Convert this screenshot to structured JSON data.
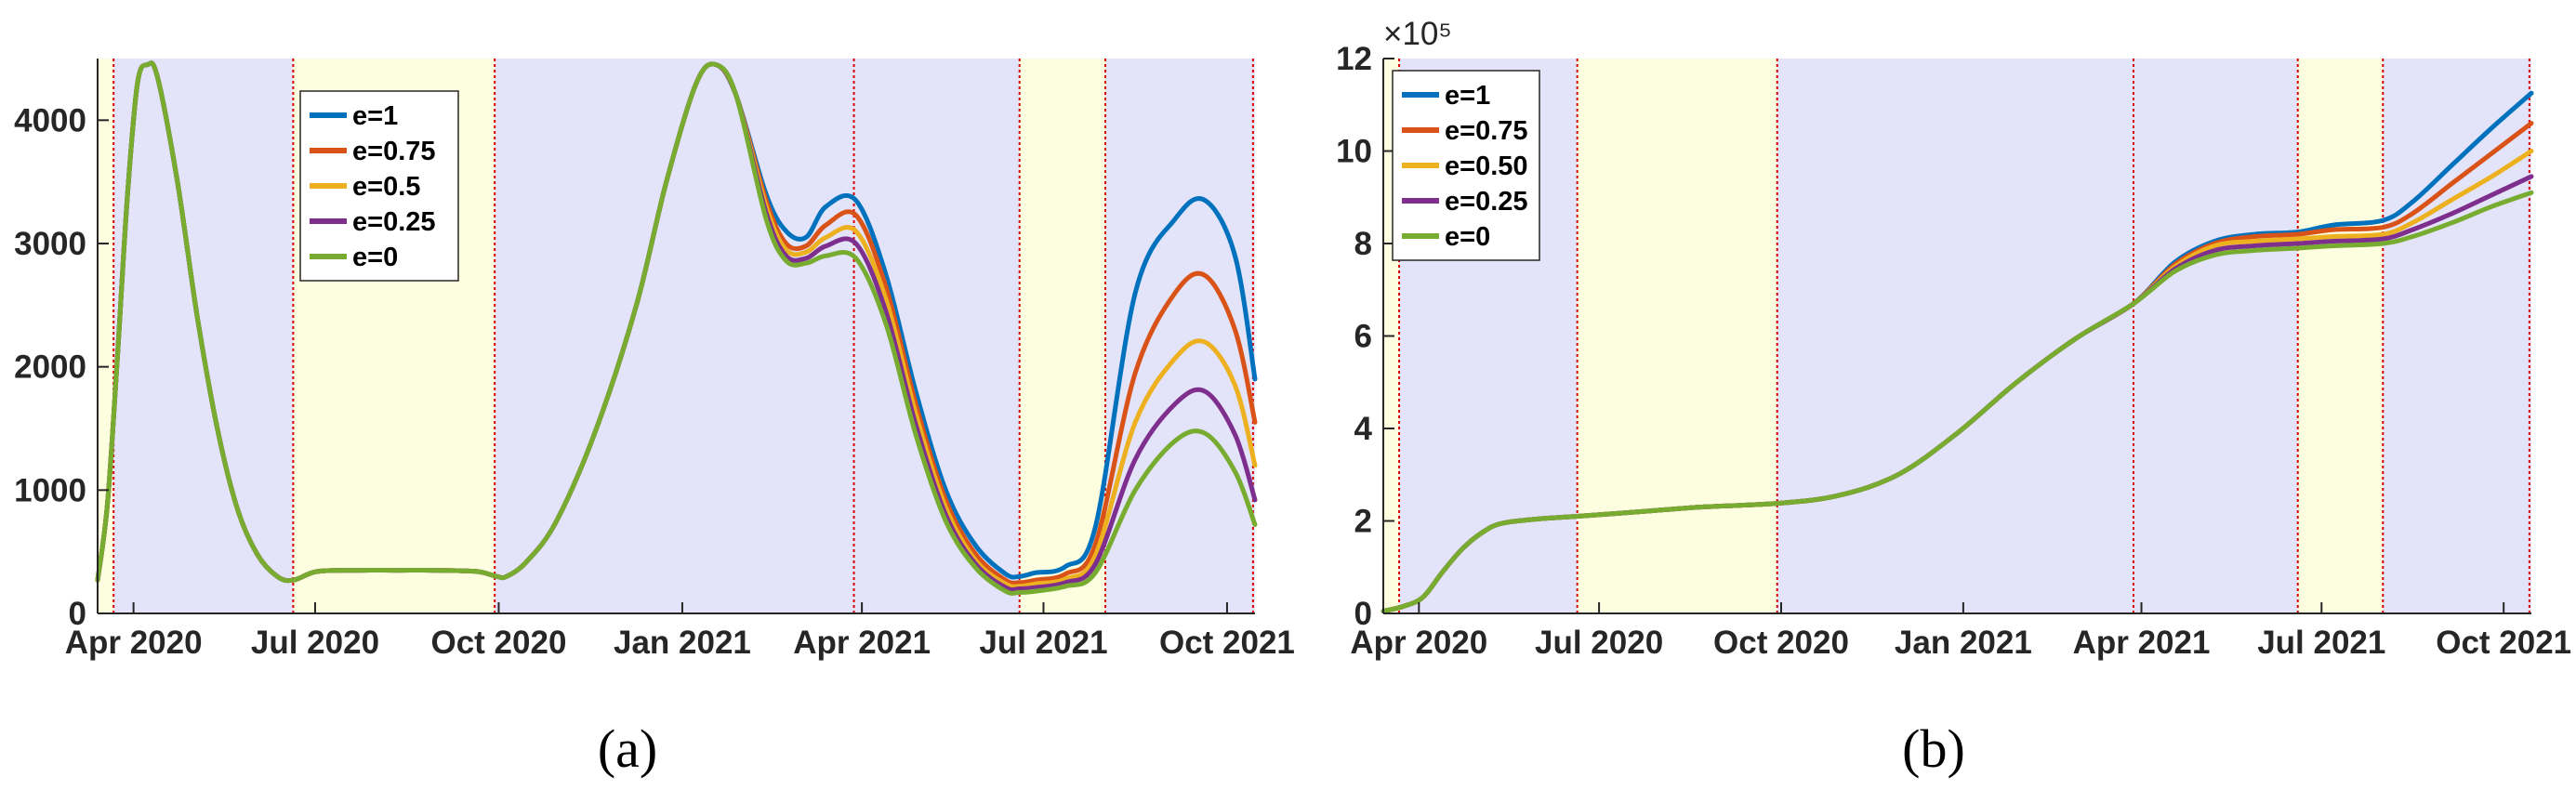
{
  "colors": {
    "shade_lockdown": "#e3e3f9",
    "shade_open": "#fdfde0",
    "boundary": "#dd0000",
    "axis": "#262626"
  },
  "chart_data": [
    {
      "id": "a",
      "caption": "(a)",
      "type": "line",
      "xlim": [
        0,
        580
      ],
      "ylim": [
        0,
        4500
      ],
      "x_ticks": [
        {
          "label": "Apr 2020",
          "day": 18
        },
        {
          "label": "Jul 2020",
          "day": 109
        },
        {
          "label": "Oct 2020",
          "day": 201
        },
        {
          "label": "Jan 2021",
          "day": 293
        },
        {
          "label": "Apr 2021",
          "day": 383
        },
        {
          "label": "Jul 2021",
          "day": 474
        },
        {
          "label": "Oct 2021",
          "day": 566
        }
      ],
      "y_ticks": [
        {
          "label": "0",
          "value": 0
        },
        {
          "label": "1000",
          "value": 1000
        },
        {
          "label": "2000",
          "value": 2000
        },
        {
          "label": "3000",
          "value": 3000
        },
        {
          "label": "4000",
          "value": 4000
        }
      ],
      "y_exponent": "",
      "shaded_regions": [
        {
          "from": 0,
          "to": 8,
          "kind": "open"
        },
        {
          "from": 8,
          "to": 98,
          "kind": "lockdown"
        },
        {
          "from": 98,
          "to": 199,
          "kind": "open"
        },
        {
          "from": 199,
          "to": 379,
          "kind": "lockdown"
        },
        {
          "from": 379,
          "to": 462,
          "kind": "lockdown"
        },
        {
          "from": 462,
          "to": 505,
          "kind": "open"
        },
        {
          "from": 505,
          "to": 580,
          "kind": "lockdown"
        }
      ],
      "boundaries": [
        8,
        98,
        199,
        379,
        462,
        505,
        579
      ],
      "legend": {
        "position": "upper-left-center",
        "entries": [
          "e=1",
          "e=0.75",
          "e=0.5",
          "e=0.25",
          "e=0"
        ]
      },
      "series": [
        {
          "name": "e=1",
          "color": "#0072bd",
          "x": [
            0,
            5,
            10,
            15,
            20,
            25,
            30,
            40,
            50,
            60,
            70,
            80,
            90,
            98,
            110,
            130,
            150,
            170,
            190,
            200,
            205,
            215,
            230,
            250,
            270,
            285,
            300,
            310,
            320,
            335,
            345,
            355,
            365,
            380,
            395,
            410,
            425,
            440,
            455,
            462,
            470,
            485,
            500,
            520,
            540,
            555,
            570,
            580
          ],
          "y": [
            270,
            900,
            2100,
            3400,
            4300,
            4450,
            4350,
            3500,
            2400,
            1500,
            850,
            480,
            300,
            270,
            340,
            350,
            350,
            350,
            340,
            300,
            300,
            420,
            750,
            1500,
            2500,
            3500,
            4300,
            4450,
            4200,
            3400,
            3100,
            3050,
            3300,
            3350,
            2750,
            1800,
            1000,
            550,
            320,
            300,
            330,
            380,
            700,
            2600,
            3200,
            3350,
            2900,
            1900
          ]
        },
        {
          "name": "e=0.75",
          "color": "#d95319",
          "x": [
            0,
            5,
            10,
            15,
            20,
            25,
            30,
            40,
            50,
            60,
            70,
            80,
            90,
            98,
            110,
            130,
            150,
            170,
            190,
            200,
            205,
            215,
            230,
            250,
            270,
            285,
            300,
            310,
            320,
            335,
            345,
            355,
            365,
            380,
            395,
            410,
            425,
            440,
            455,
            462,
            470,
            485,
            500,
            520,
            540,
            555,
            570,
            580
          ],
          "y": [
            270,
            900,
            2100,
            3400,
            4300,
            4450,
            4350,
            3500,
            2400,
            1500,
            850,
            480,
            300,
            270,
            340,
            350,
            350,
            350,
            340,
            300,
            300,
            420,
            750,
            1500,
            2500,
            3500,
            4300,
            4450,
            4200,
            3350,
            3000,
            2980,
            3150,
            3230,
            2650,
            1700,
            920,
            480,
            270,
            250,
            270,
            320,
            560,
            1950,
            2600,
            2740,
            2300,
            1550
          ]
        },
        {
          "name": "e=0.5",
          "color": "#edb120",
          "x": [
            0,
            5,
            10,
            15,
            20,
            25,
            30,
            40,
            50,
            60,
            70,
            80,
            90,
            98,
            110,
            130,
            150,
            170,
            190,
            200,
            205,
            215,
            230,
            250,
            270,
            285,
            300,
            310,
            320,
            335,
            345,
            355,
            365,
            380,
            395,
            410,
            425,
            440,
            455,
            462,
            470,
            485,
            500,
            520,
            540,
            555,
            570,
            580
          ],
          "y": [
            270,
            900,
            2100,
            3400,
            4300,
            4450,
            4350,
            3500,
            2400,
            1500,
            850,
            480,
            300,
            270,
            340,
            350,
            350,
            350,
            340,
            300,
            300,
            420,
            750,
            1500,
            2500,
            3500,
            4300,
            4450,
            4200,
            3300,
            2950,
            2930,
            3050,
            3100,
            2550,
            1620,
            860,
            430,
            240,
            220,
            240,
            280,
            470,
            1550,
            2070,
            2200,
            1850,
            1200
          ]
        },
        {
          "name": "e=0.25",
          "color": "#7e2f8e",
          "x": [
            0,
            5,
            10,
            15,
            20,
            25,
            30,
            40,
            50,
            60,
            70,
            80,
            90,
            98,
            110,
            130,
            150,
            170,
            190,
            200,
            205,
            215,
            230,
            250,
            270,
            285,
            300,
            310,
            320,
            335,
            345,
            355,
            365,
            380,
            395,
            410,
            425,
            440,
            455,
            462,
            470,
            485,
            500,
            520,
            540,
            555,
            570,
            580
          ],
          "y": [
            270,
            900,
            2100,
            3400,
            4300,
            4450,
            4350,
            3500,
            2400,
            1500,
            850,
            480,
            300,
            270,
            340,
            350,
            350,
            350,
            340,
            300,
            300,
            420,
            750,
            1500,
            2500,
            3500,
            4300,
            4450,
            4200,
            3250,
            2900,
            2880,
            2980,
            3000,
            2450,
            1530,
            800,
            400,
            210,
            200,
            210,
            250,
            400,
            1250,
            1700,
            1800,
            1450,
            920
          ]
        },
        {
          "name": "e=0",
          "color": "#77ac30",
          "x": [
            0,
            5,
            10,
            15,
            20,
            25,
            30,
            40,
            50,
            60,
            70,
            80,
            90,
            98,
            110,
            130,
            150,
            170,
            190,
            200,
            205,
            215,
            230,
            250,
            270,
            285,
            300,
            310,
            320,
            335,
            345,
            355,
            365,
            380,
            395,
            410,
            425,
            440,
            455,
            462,
            470,
            485,
            500,
            520,
            540,
            555,
            570,
            580
          ],
          "y": [
            270,
            900,
            2100,
            3400,
            4300,
            4450,
            4350,
            3500,
            2400,
            1500,
            850,
            480,
            300,
            270,
            340,
            350,
            350,
            350,
            340,
            300,
            300,
            420,
            750,
            1500,
            2500,
            3500,
            4300,
            4450,
            4200,
            3200,
            2860,
            2840,
            2900,
            2880,
            2350,
            1450,
            750,
            370,
            180,
            170,
            180,
            220,
            330,
            1000,
            1400,
            1460,
            1150,
            720
          ]
        }
      ]
    },
    {
      "id": "b",
      "caption": "(b)",
      "type": "line",
      "xlim": [
        0,
        580
      ],
      "ylim": [
        0,
        12
      ],
      "x_ticks": [
        {
          "label": "Apr 2020",
          "day": 18
        },
        {
          "label": "Jul 2020",
          "day": 109
        },
        {
          "label": "Oct 2020",
          "day": 201
        },
        {
          "label": "Jan 2021",
          "day": 293
        },
        {
          "label": "Apr 2021",
          "day": 383
        },
        {
          "label": "Jul 2021",
          "day": 474
        },
        {
          "label": "Oct 2021",
          "day": 566
        }
      ],
      "y_ticks": [
        {
          "label": "0",
          "value": 0
        },
        {
          "label": "2",
          "value": 2
        },
        {
          "label": "4",
          "value": 4
        },
        {
          "label": "6",
          "value": 6
        },
        {
          "label": "8",
          "value": 8
        },
        {
          "label": "10",
          "value": 10
        },
        {
          "label": "12",
          "value": 12
        }
      ],
      "y_exponent": "×10⁵",
      "shaded_regions": [
        {
          "from": 0,
          "to": 8,
          "kind": "open"
        },
        {
          "from": 8,
          "to": 98,
          "kind": "lockdown"
        },
        {
          "from": 98,
          "to": 199,
          "kind": "open"
        },
        {
          "from": 199,
          "to": 379,
          "kind": "lockdown"
        },
        {
          "from": 379,
          "to": 462,
          "kind": "lockdown"
        },
        {
          "from": 462,
          "to": 505,
          "kind": "open"
        },
        {
          "from": 505,
          "to": 580,
          "kind": "lockdown"
        }
      ],
      "boundaries": [
        8,
        98,
        199,
        379,
        462,
        505,
        579
      ],
      "legend": {
        "position": "upper-left",
        "entries": [
          "e=1",
          "e=0.75",
          "e=0.50",
          "e=0.25",
          "e=0"
        ]
      },
      "series": [
        {
          "name": "e=1",
          "color": "#0072bd",
          "x": [
            0,
            10,
            20,
            30,
            40,
            50,
            60,
            80,
            98,
            130,
            160,
            199,
            230,
            260,
            290,
            320,
            350,
            379,
            400,
            420,
            440,
            462,
            480,
            505,
            520,
            540,
            560,
            580
          ],
          "y": [
            0.05,
            0.15,
            0.35,
            0.9,
            1.4,
            1.75,
            1.95,
            2.05,
            2.1,
            2.2,
            2.3,
            2.38,
            2.55,
            3.0,
            3.9,
            5.0,
            5.95,
            6.7,
            7.6,
            8.05,
            8.2,
            8.25,
            8.4,
            8.5,
            8.9,
            9.7,
            10.5,
            11.25
          ]
        },
        {
          "name": "e=0.75",
          "color": "#d95319",
          "x": [
            0,
            10,
            20,
            30,
            40,
            50,
            60,
            80,
            98,
            130,
            160,
            199,
            230,
            260,
            290,
            320,
            350,
            379,
            400,
            420,
            440,
            462,
            480,
            505,
            520,
            540,
            560,
            580
          ],
          "y": [
            0.05,
            0.15,
            0.35,
            0.9,
            1.4,
            1.75,
            1.95,
            2.05,
            2.1,
            2.2,
            2.3,
            2.38,
            2.55,
            3.0,
            3.9,
            5.0,
            5.95,
            6.7,
            7.55,
            8.0,
            8.15,
            8.2,
            8.3,
            8.35,
            8.65,
            9.3,
            9.95,
            10.6
          ]
        },
        {
          "name": "e=0.50",
          "color": "#edb120",
          "x": [
            0,
            10,
            20,
            30,
            40,
            50,
            60,
            80,
            98,
            130,
            160,
            199,
            230,
            260,
            290,
            320,
            350,
            379,
            400,
            420,
            440,
            462,
            480,
            505,
            520,
            540,
            560,
            580
          ],
          "y": [
            0.05,
            0.15,
            0.35,
            0.9,
            1.4,
            1.75,
            1.95,
            2.05,
            2.1,
            2.2,
            2.3,
            2.38,
            2.55,
            3.0,
            3.9,
            5.0,
            5.95,
            6.7,
            7.5,
            7.95,
            8.05,
            8.1,
            8.15,
            8.2,
            8.45,
            8.95,
            9.45,
            10.0
          ]
        },
        {
          "name": "e=0.25",
          "color": "#7e2f8e",
          "x": [
            0,
            10,
            20,
            30,
            40,
            50,
            60,
            80,
            98,
            130,
            160,
            199,
            230,
            260,
            290,
            320,
            350,
            379,
            400,
            420,
            440,
            462,
            480,
            505,
            520,
            540,
            560,
            580
          ],
          "y": [
            0.05,
            0.15,
            0.35,
            0.9,
            1.4,
            1.75,
            1.95,
            2.05,
            2.1,
            2.2,
            2.3,
            2.38,
            2.55,
            3.0,
            3.9,
            5.0,
            5.95,
            6.7,
            7.45,
            7.85,
            7.95,
            8.0,
            8.05,
            8.1,
            8.3,
            8.65,
            9.05,
            9.45
          ]
        },
        {
          "name": "e=0",
          "color": "#77ac30",
          "x": [
            0,
            10,
            20,
            30,
            40,
            50,
            60,
            80,
            98,
            130,
            160,
            199,
            230,
            260,
            290,
            320,
            350,
            379,
            400,
            420,
            440,
            462,
            480,
            505,
            520,
            540,
            560,
            580
          ],
          "y": [
            0.05,
            0.15,
            0.35,
            0.9,
            1.4,
            1.75,
            1.95,
            2.05,
            2.1,
            2.2,
            2.3,
            2.38,
            2.55,
            3.0,
            3.9,
            5.0,
            5.95,
            6.7,
            7.4,
            7.75,
            7.85,
            7.9,
            7.95,
            8.0,
            8.15,
            8.45,
            8.8,
            9.1
          ]
        }
      ]
    }
  ]
}
